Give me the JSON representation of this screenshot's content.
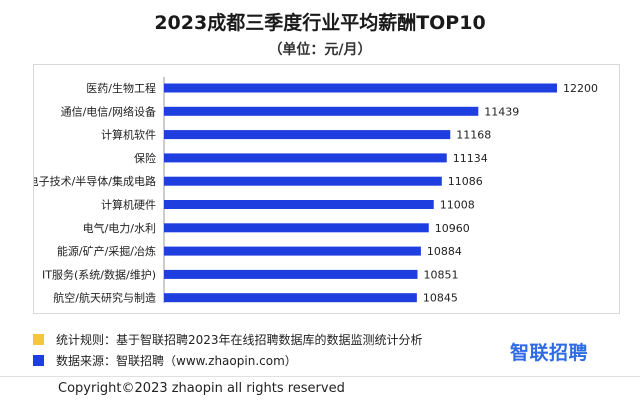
{
  "chart_data": {
    "type": "bar",
    "orientation": "horizontal",
    "title": "2023成都三季度行业平均薪酬TOP10",
    "subtitle": "（单位：元/月）",
    "categories": [
      "医药/生物工程",
      "通信/电信/网络设备",
      "计算机软件",
      "保险",
      "电子技术/半导体/集成电路",
      "计算机硬件",
      "电气/电力/水利",
      "能源/矿产/采掘/冶炼",
      "IT服务(系统/数据/维护)",
      "航空/航天研究与制造"
    ],
    "values": [
      12200,
      11439,
      11168,
      11134,
      11086,
      11008,
      10960,
      10884,
      10851,
      10845
    ],
    "value_labels": [
      "12200",
      "11439",
      "11168",
      "11134",
      "11086",
      "11008",
      "10960",
      "10884",
      "10851",
      "10845"
    ],
    "xlim": [
      8400,
      12200
    ],
    "grid": false,
    "legend": "none",
    "bar_color": "#1f3ee0"
  },
  "notes": [
    {
      "text": "统计规则：基于智联招聘2023年在线招聘数据库的数据监测统计分析",
      "color": "#f5c542"
    },
    {
      "text": "数据来源：智联招聘（www.zhaopin.com）",
      "color": "#1f3ee0"
    }
  ],
  "brand": "智联招聘",
  "copyright": "Copyright©2023 zhaopin all rights reserved"
}
